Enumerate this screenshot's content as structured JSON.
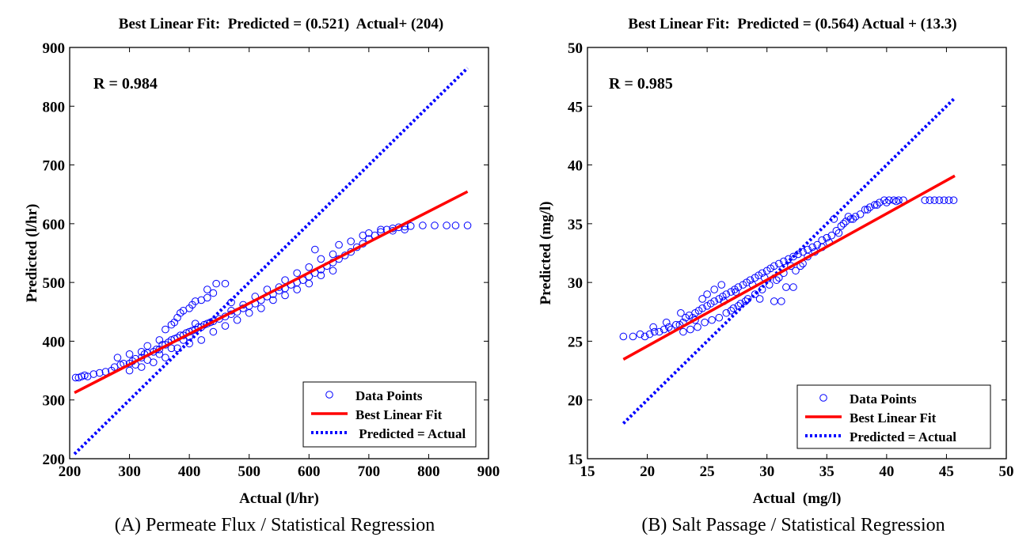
{
  "colors": {
    "points": "#0000ff",
    "fit_line": "#ff0000",
    "identity_line": "#0000ff",
    "axes": "#000000"
  },
  "chart_data": [
    {
      "type": "scatter",
      "title": "Best Linear Fit:  Predicted = (0.521)  Actual+ (204)",
      "caption": "(A) Permeate Flux / Statistical Regression",
      "xlabel": "Actual (l/hr)",
      "ylabel": "Predicted (l/hr)",
      "xlim": [
        200,
        900
      ],
      "ylim": [
        200,
        900
      ],
      "xticks": [
        200,
        300,
        400,
        500,
        600,
        700,
        800,
        900
      ],
      "yticks": [
        200,
        300,
        400,
        500,
        600,
        700,
        800,
        900
      ],
      "annotation": "R = 0.984",
      "legend_position": "bottom-right",
      "legend": [
        "Data Points",
        "Best Linear Fit",
        " Predicted = Actual"
      ],
      "fit": {
        "slope": 0.521,
        "intercept": 204,
        "x_range": [
          208,
          865
        ]
      },
      "identity": {
        "x_range": [
          208,
          865
        ]
      },
      "points": [
        [
          210,
          338
        ],
        [
          215,
          338
        ],
        [
          220,
          340
        ],
        [
          225,
          342
        ],
        [
          230,
          340
        ],
        [
          240,
          344
        ],
        [
          250,
          346
        ],
        [
          260,
          348
        ],
        [
          270,
          350
        ],
        [
          275,
          356
        ],
        [
          285,
          360
        ],
        [
          290,
          362
        ],
        [
          300,
          362
        ],
        [
          305,
          366
        ],
        [
          310,
          370
        ],
        [
          320,
          372
        ],
        [
          325,
          378
        ],
        [
          330,
          380
        ],
        [
          340,
          382
        ],
        [
          345,
          386
        ],
        [
          350,
          386
        ],
        [
          355,
          394
        ],
        [
          360,
          394
        ],
        [
          365,
          398
        ],
        [
          370,
          402
        ],
        [
          375,
          404
        ],
        [
          380,
          406
        ],
        [
          385,
          410
        ],
        [
          390,
          410
        ],
        [
          395,
          414
        ],
        [
          400,
          416
        ],
        [
          405,
          418
        ],
        [
          410,
          420
        ],
        [
          415,
          424
        ],
        [
          420,
          424
        ],
        [
          425,
          428
        ],
        [
          430,
          430
        ],
        [
          435,
          432
        ],
        [
          440,
          434
        ],
        [
          450,
          438
        ],
        [
          460,
          442
        ],
        [
          470,
          446
        ],
        [
          480,
          450
        ],
        [
          490,
          456
        ],
        [
          500,
          460
        ],
        [
          510,
          464
        ],
        [
          520,
          470
        ],
        [
          530,
          476
        ],
        [
          540,
          480
        ],
        [
          550,
          486
        ],
        [
          560,
          490
        ],
        [
          570,
          496
        ],
        [
          580,
          500
        ],
        [
          590,
          504
        ],
        [
          600,
          510
        ],
        [
          610,
          516
        ],
        [
          620,
          522
        ],
        [
          630,
          528
        ],
        [
          640,
          534
        ],
        [
          650,
          540
        ],
        [
          660,
          546
        ],
        [
          670,
          552
        ],
        [
          680,
          560
        ],
        [
          690,
          566
        ],
        [
          700,
          574
        ],
        [
          710,
          580
        ],
        [
          720,
          586
        ],
        [
          730,
          590
        ],
        [
          740,
          592
        ],
        [
          750,
          594
        ],
        [
          760,
          595
        ],
        [
          770,
          596
        ],
        [
          790,
          597
        ],
        [
          810,
          597
        ],
        [
          830,
          597
        ],
        [
          845,
          597
        ],
        [
          865,
          597
        ],
        [
          280,
          372
        ],
        [
          300,
          378
        ],
        [
          320,
          382
        ],
        [
          330,
          392
        ],
        [
          350,
          402
        ],
        [
          360,
          420
        ],
        [
          370,
          428
        ],
        [
          375,
          432
        ],
        [
          380,
          440
        ],
        [
          385,
          448
        ],
        [
          390,
          452
        ],
        [
          400,
          456
        ],
        [
          405,
          462
        ],
        [
          410,
          468
        ],
        [
          420,
          470
        ],
        [
          430,
          474
        ],
        [
          440,
          482
        ],
        [
          430,
          488
        ],
        [
          445,
          498
        ],
        [
          460,
          498
        ],
        [
          470,
          466
        ],
        [
          300,
          350
        ],
        [
          320,
          356
        ],
        [
          340,
          364
        ],
        [
          360,
          372
        ],
        [
          380,
          388
        ],
        [
          400,
          396
        ],
        [
          420,
          402
        ],
        [
          440,
          416
        ],
        [
          460,
          426
        ],
        [
          480,
          436
        ],
        [
          500,
          448
        ],
        [
          520,
          456
        ],
        [
          540,
          470
        ],
        [
          560,
          478
        ],
        [
          580,
          488
        ],
        [
          600,
          498
        ],
        [
          620,
          512
        ],
        [
          640,
          520
        ],
        [
          560,
          504
        ],
        [
          580,
          516
        ],
        [
          600,
          526
        ],
        [
          620,
          540
        ],
        [
          640,
          548
        ],
        [
          610,
          556
        ],
        [
          650,
          564
        ],
        [
          670,
          570
        ],
        [
          690,
          580
        ],
        [
          700,
          584
        ],
        [
          720,
          590
        ],
        [
          740,
          588
        ],
        [
          760,
          590
        ],
        [
          470,
          452
        ],
        [
          490,
          462
        ],
        [
          510,
          476
        ],
        [
          530,
          488
        ],
        [
          550,
          492
        ],
        [
          410,
          430
        ],
        [
          400,
          408
        ],
        [
          390,
          402
        ],
        [
          370,
          388
        ],
        [
          350,
          378
        ],
        [
          330,
          368
        ],
        [
          310,
          360
        ]
      ]
    },
    {
      "type": "scatter",
      "title": "Best Linear Fit:  Predicted = (0.564) Actual + (13.3)",
      "caption": "(B) Salt Passage / Statistical Regression",
      "xlabel": "Actual  (mg/l)",
      "ylabel": "Predicted (mg/l)",
      "xlim": [
        15,
        50
      ],
      "ylim": [
        15,
        50
      ],
      "xticks": [
        15,
        20,
        25,
        30,
        35,
        40,
        45,
        50
      ],
      "yticks": [
        15,
        20,
        25,
        30,
        35,
        40,
        45,
        50
      ],
      "annotation": "R = 0.985",
      "legend_position": "bottom-right",
      "legend": [
        "Data Points",
        "Best Linear Fit",
        "Predicted = Actual"
      ],
      "fit": {
        "slope": 0.564,
        "intercept": 13.3,
        "x_range": [
          18,
          45.7
        ]
      },
      "identity": {
        "x_range": [
          18,
          45.7
        ]
      },
      "points": [
        [
          18,
          25.4
        ],
        [
          18.8,
          25.4
        ],
        [
          19.4,
          25.6
        ],
        [
          19.8,
          25.4
        ],
        [
          20.2,
          25.6
        ],
        [
          20.5,
          26.2
        ],
        [
          21.0,
          25.8
        ],
        [
          21.4,
          26.0
        ],
        [
          21.6,
          26.6
        ],
        [
          22.0,
          26.0
        ],
        [
          22.4,
          26.4
        ],
        [
          22.7,
          26.4
        ],
        [
          23.0,
          26.6
        ],
        [
          23.2,
          27.0
        ],
        [
          23.5,
          27.2
        ],
        [
          23.8,
          27.0
        ],
        [
          24.0,
          27.4
        ],
        [
          24.3,
          27.6
        ],
        [
          24.6,
          27.8
        ],
        [
          25.0,
          28.0
        ],
        [
          25.3,
          28.2
        ],
        [
          25.6,
          28.4
        ],
        [
          26.0,
          28.6
        ],
        [
          26.3,
          28.8
        ],
        [
          26.6,
          29.0
        ],
        [
          27.0,
          29.2
        ],
        [
          27.3,
          29.4
        ],
        [
          27.6,
          29.6
        ],
        [
          28.0,
          29.8
        ],
        [
          28.3,
          30.0
        ],
        [
          28.6,
          30.2
        ],
        [
          29.0,
          30.4
        ],
        [
          29.3,
          30.6
        ],
        [
          29.6,
          30.8
        ],
        [
          30.0,
          31.0
        ],
        [
          30.3,
          31.2
        ],
        [
          30.6,
          31.4
        ],
        [
          31.0,
          31.6
        ],
        [
          31.4,
          31.8
        ],
        [
          31.8,
          32.0
        ],
        [
          32.2,
          32.2
        ],
        [
          32.6,
          32.4
        ],
        [
          33.0,
          32.6
        ],
        [
          33.4,
          32.8
        ],
        [
          33.8,
          33.0
        ],
        [
          34.2,
          33.2
        ],
        [
          34.6,
          33.6
        ],
        [
          35.0,
          33.8
        ],
        [
          35.4,
          34.0
        ],
        [
          35.8,
          34.4
        ],
        [
          36.2,
          34.8
        ],
        [
          36.6,
          35.2
        ],
        [
          37.0,
          35.4
        ],
        [
          37.4,
          35.6
        ],
        [
          37.8,
          35.8
        ],
        [
          38.2,
          36.2
        ],
        [
          38.6,
          36.4
        ],
        [
          39.0,
          36.6
        ],
        [
          39.4,
          36.8
        ],
        [
          39.8,
          37.0
        ],
        [
          40.2,
          37.0
        ],
        [
          40.6,
          37.0
        ],
        [
          41.0,
          37.0
        ],
        [
          41.4,
          37.0
        ],
        [
          43.2,
          37.0
        ],
        [
          43.6,
          37.0
        ],
        [
          44.0,
          37.0
        ],
        [
          44.4,
          37.0
        ],
        [
          44.8,
          37.0
        ],
        [
          45.2,
          37.0
        ],
        [
          45.6,
          37.0
        ],
        [
          23.0,
          25.8
        ],
        [
          23.6,
          26.0
        ],
        [
          24.2,
          26.2
        ],
        [
          24.8,
          26.6
        ],
        [
          25.4,
          26.8
        ],
        [
          26.0,
          27.0
        ],
        [
          26.6,
          27.4
        ],
        [
          27.2,
          27.8
        ],
        [
          27.8,
          28.2
        ],
        [
          28.4,
          28.6
        ],
        [
          29.0,
          29.0
        ],
        [
          29.6,
          29.4
        ],
        [
          30.2,
          29.8
        ],
        [
          30.8,
          30.2
        ],
        [
          25.0,
          29.0
        ],
        [
          25.6,
          29.4
        ],
        [
          26.2,
          29.8
        ],
        [
          24.6,
          28.6
        ],
        [
          22.8,
          27.4
        ],
        [
          27.0,
          27.6
        ],
        [
          27.6,
          28.0
        ],
        [
          28.2,
          28.4
        ],
        [
          29.4,
          28.6
        ],
        [
          30.6,
          28.4
        ],
        [
          31.2,
          28.4
        ],
        [
          31.6,
          29.6
        ],
        [
          32.2,
          29.6
        ],
        [
          32.8,
          31.4
        ],
        [
          33.4,
          32.2
        ],
        [
          34.0,
          32.6
        ],
        [
          34.6,
          33.0
        ],
        [
          35.2,
          33.4
        ],
        [
          36.0,
          34.2
        ],
        [
          36.4,
          35.0
        ],
        [
          37.2,
          35.4
        ],
        [
          31.0,
          30.4
        ],
        [
          31.4,
          30.8
        ],
        [
          32.0,
          31.4
        ],
        [
          32.4,
          31.0
        ],
        [
          33.0,
          31.6
        ],
        [
          26.4,
          28.4
        ],
        [
          27.4,
          29.2
        ],
        [
          28.8,
          29.8
        ],
        [
          29.8,
          30.4
        ],
        [
          24.0,
          26.8
        ],
        [
          21.8,
          26.2
        ],
        [
          20.6,
          25.8
        ],
        [
          35.6,
          35.4
        ],
        [
          36.8,
          35.6
        ],
        [
          38.4,
          36.2
        ],
        [
          39.2,
          36.6
        ],
        [
          40.0,
          36.8
        ],
        [
          40.8,
          36.9
        ]
      ]
    }
  ]
}
